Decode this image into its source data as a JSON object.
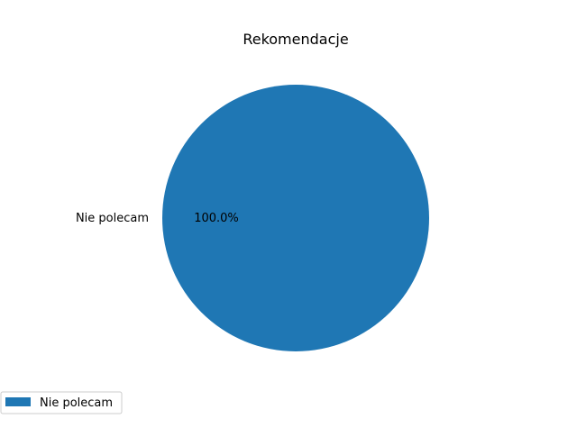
{
  "chart_data": {
    "type": "pie",
    "title": "Rekomendacje",
    "slices": [
      {
        "label": "Nie polecam",
        "value": 100,
        "percent_label": "100.0%",
        "color": "#1f77b4"
      }
    ],
    "legend": {
      "placement": "lower-left",
      "entries": [
        "Nie polecam"
      ]
    }
  }
}
